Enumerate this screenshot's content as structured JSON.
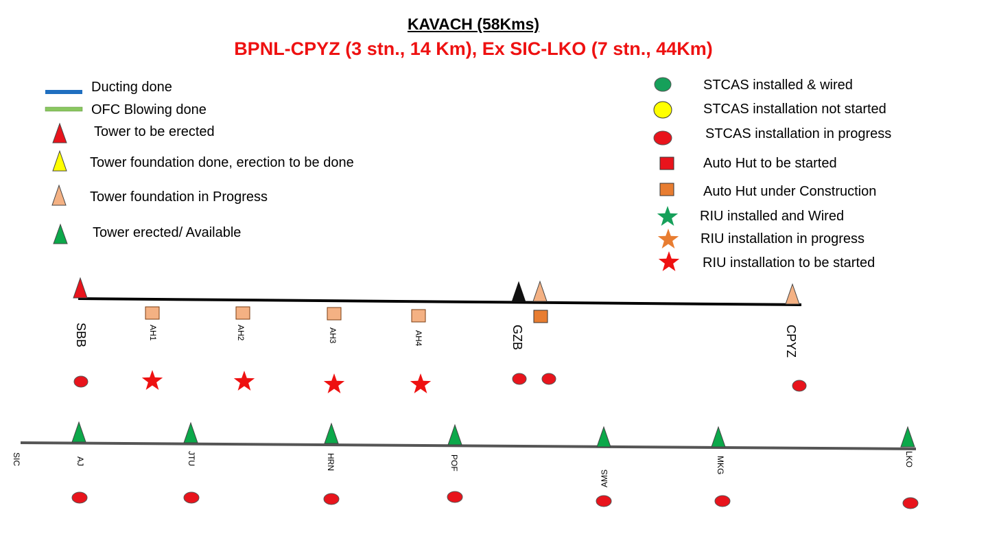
{
  "header": {
    "title": "KAVACH (58Kms)",
    "subtitle": "BPNL-CPYZ (3 stn., 14 Km), Ex SIC-LKO (7 stn., 44Km)"
  },
  "legend_left": [
    {
      "icon": "line",
      "color": "#1f6fc0",
      "label": "Ducting done"
    },
    {
      "icon": "line",
      "color": "#8ac760",
      "label": "OFC Blowing done"
    },
    {
      "icon": "triangle",
      "color": "#e8141c",
      "label": "Tower to be erected"
    },
    {
      "icon": "triangle",
      "color": "#ffff00",
      "label": "Tower foundation done, erection to be done"
    },
    {
      "icon": "triangle",
      "color": "#f4b183",
      "label": "Tower foundation in Progress"
    },
    {
      "icon": "triangle",
      "color": "#0ca84a",
      "label": "Tower erected/ Available"
    }
  ],
  "legend_right": [
    {
      "icon": "ellipse",
      "color": "#16a05a",
      "label": "STCAS installed & wired"
    },
    {
      "icon": "ellipse",
      "color": "#ffff00",
      "label": "STCAS installation not started"
    },
    {
      "icon": "ellipse",
      "color": "#e8141c",
      "label": "STCAS installation in progress"
    },
    {
      "icon": "square",
      "color": "#e8141c",
      "label": "Auto Hut to be started"
    },
    {
      "icon": "square",
      "color": "#e87d31",
      "label": "Auto Hut under Construction"
    },
    {
      "icon": "star",
      "color": "#16a05a",
      "label": "RIU installed and Wired"
    },
    {
      "icon": "star",
      "color": "#e87d31",
      "label": "RIU installation in progress"
    },
    {
      "icon": "star",
      "color": "#ee1111",
      "label": "RIU installation to be started"
    }
  ],
  "section_1": {
    "stations": [
      {
        "label": "SBB",
        "tower": "red",
        "stcas": "red"
      },
      {
        "label": "AH1",
        "hut": "peach",
        "riu": "red"
      },
      {
        "label": "AH2",
        "hut": "peach",
        "riu": "red"
      },
      {
        "label": "AH3",
        "hut": "peach",
        "riu": "red"
      },
      {
        "label": "AH4",
        "hut": "peach",
        "riu": "red"
      },
      {
        "label": "GZB",
        "tower": "black",
        "stcas": "red"
      },
      {
        "label": "",
        "tower": "peach",
        "hut": "orange",
        "stcas": "red"
      },
      {
        "label": "CPYZ",
        "tower": "peach",
        "stcas": "red"
      }
    ]
  },
  "section_2": {
    "stations": [
      {
        "label": "SIC"
      },
      {
        "label": "AJ",
        "tower": "green",
        "stcas": "red"
      },
      {
        "label": "JTU",
        "tower": "green",
        "stcas": "red"
      },
      {
        "label": "HRN",
        "tower": "green",
        "stcas": "red"
      },
      {
        "label": "POF",
        "tower": "green",
        "stcas": "red"
      },
      {
        "label": "AMS",
        "tower": "green",
        "stcas": "red"
      },
      {
        "label": "MKG",
        "tower": "green",
        "stcas": "red"
      },
      {
        "label": "LKO",
        "tower": "green",
        "stcas": "red"
      }
    ]
  }
}
